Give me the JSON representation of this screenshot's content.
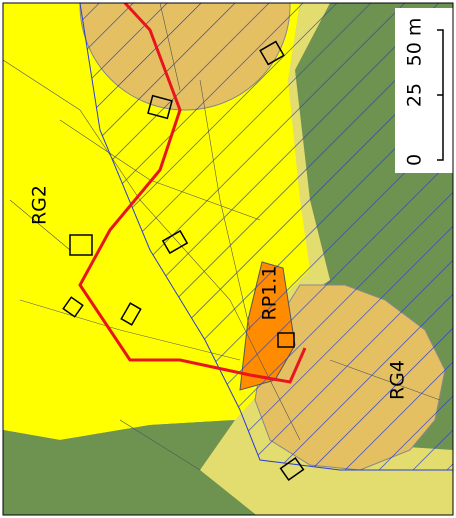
{
  "zones": [
    {
      "label": "RG2"
    },
    {
      "label": "RP1.1"
    },
    {
      "label": "RG4"
    }
  ],
  "scale_bar": {
    "labels": [
      "0",
      "25",
      "50 m"
    ]
  }
}
